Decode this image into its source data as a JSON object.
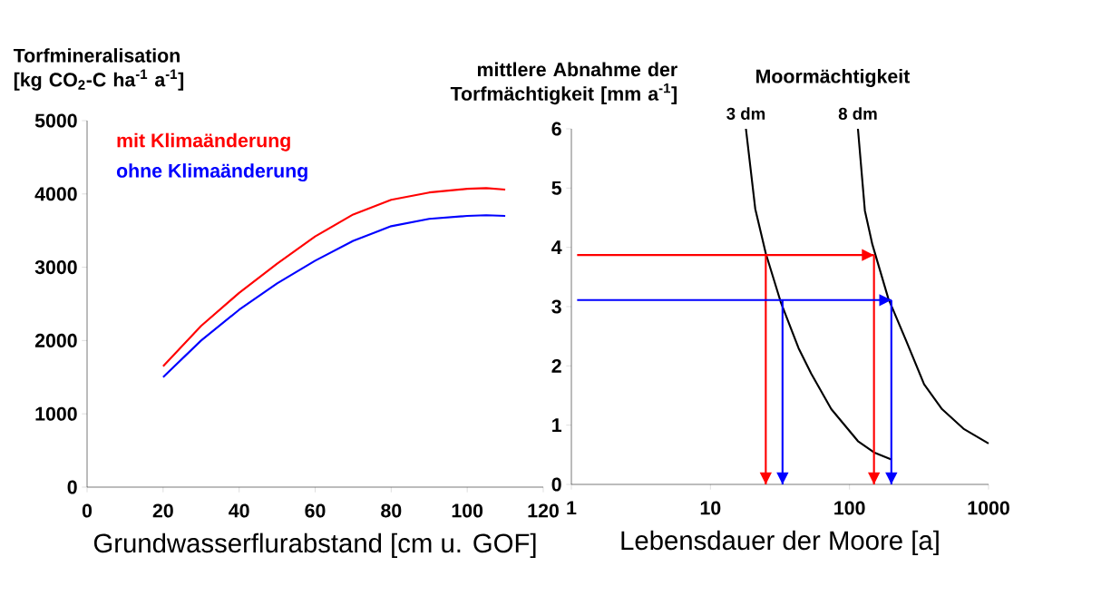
{
  "chart_data": [
    {
      "type": "line",
      "xlabel": "Grundwasserflurabstand [cm u. GOF]",
      "ylabel": "Torfmineralisation [kg CO$_{2}$-C ha$^{-1}$ a$^{-1}$]",
      "x": [
        20,
        30,
        40,
        50,
        60,
        70,
        80,
        90,
        100,
        105,
        110
      ],
      "series": [
        {
          "name": "mit Klimaänderung",
          "color": "#ff0000",
          "values": [
            1650,
            2200,
            2650,
            3050,
            3420,
            3720,
            3920,
            4020,
            4070,
            4080,
            4060
          ]
        },
        {
          "name": "ohne Klimaänderung",
          "color": "#0000ff",
          "values": [
            1500,
            2000,
            2420,
            2780,
            3090,
            3360,
            3560,
            3660,
            3700,
            3710,
            3700
          ]
        }
      ],
      "xlim": [
        0,
        120
      ],
      "ylim": [
        0,
        5000
      ],
      "xticks": [
        0,
        20,
        40,
        60,
        80,
        100,
        120
      ],
      "yticks": [
        0,
        1000,
        2000,
        3000,
        4000,
        5000
      ],
      "legend": "top left"
    },
    {
      "type": "line",
      "xlabel": "Lebensdauer der Moore [a]",
      "ylabel": "mittlere Abnahme der Torfmächtigkeit [mm a$^{-1}$]",
      "legend_title": "Moormächtigkeit",
      "log": "x",
      "series": [
        {
          "name": "3 dm",
          "color": "#000000",
          "x": [
            18,
            21,
            25,
            32,
            43,
            53,
            74,
            115,
            150,
            200
          ],
          "values": [
            6,
            4.65,
            3.9,
            3.08,
            2.3,
            1.87,
            1.27,
            0.73,
            0.54,
            0.42
          ]
        },
        {
          "name": "8 dm",
          "color": "#000000",
          "x": [
            115,
            129,
            146,
            190,
            256,
            344,
            463,
            660,
            1000
          ],
          "values": [
            6,
            4.62,
            4.05,
            3.14,
            2.42,
            1.69,
            1.27,
            0.94,
            0.69
          ]
        },
        {
          "color": "#ff0000",
          "x": [
            1.1,
            150
          ],
          "values": [
            3.87,
            3.87
          ]
        },
        {
          "color": "#ff0000",
          "x": [
            25,
            25
          ],
          "values": [
            3.87,
            0
          ]
        },
        {
          "color": "#ff0000",
          "x": [
            150,
            150
          ],
          "values": [
            3.87,
            0
          ]
        },
        {
          "color": "#0000ff",
          "x": [
            1.1,
            200
          ],
          "values": [
            3.11,
            3.11
          ]
        },
        {
          "color": "#0000ff",
          "x": [
            33,
            33
          ],
          "values": [
            3.11,
            0
          ]
        },
        {
          "color": "#0000ff",
          "x": [
            200,
            200
          ],
          "values": [
            3.11,
            0
          ]
        }
      ],
      "xlim": [
        1,
        1000
      ],
      "ylim": [
        0,
        6
      ],
      "xticks": [
        1,
        10,
        100,
        1000
      ],
      "yticks": [
        0,
        1,
        2,
        3,
        4,
        5,
        6
      ]
    }
  ]
}
